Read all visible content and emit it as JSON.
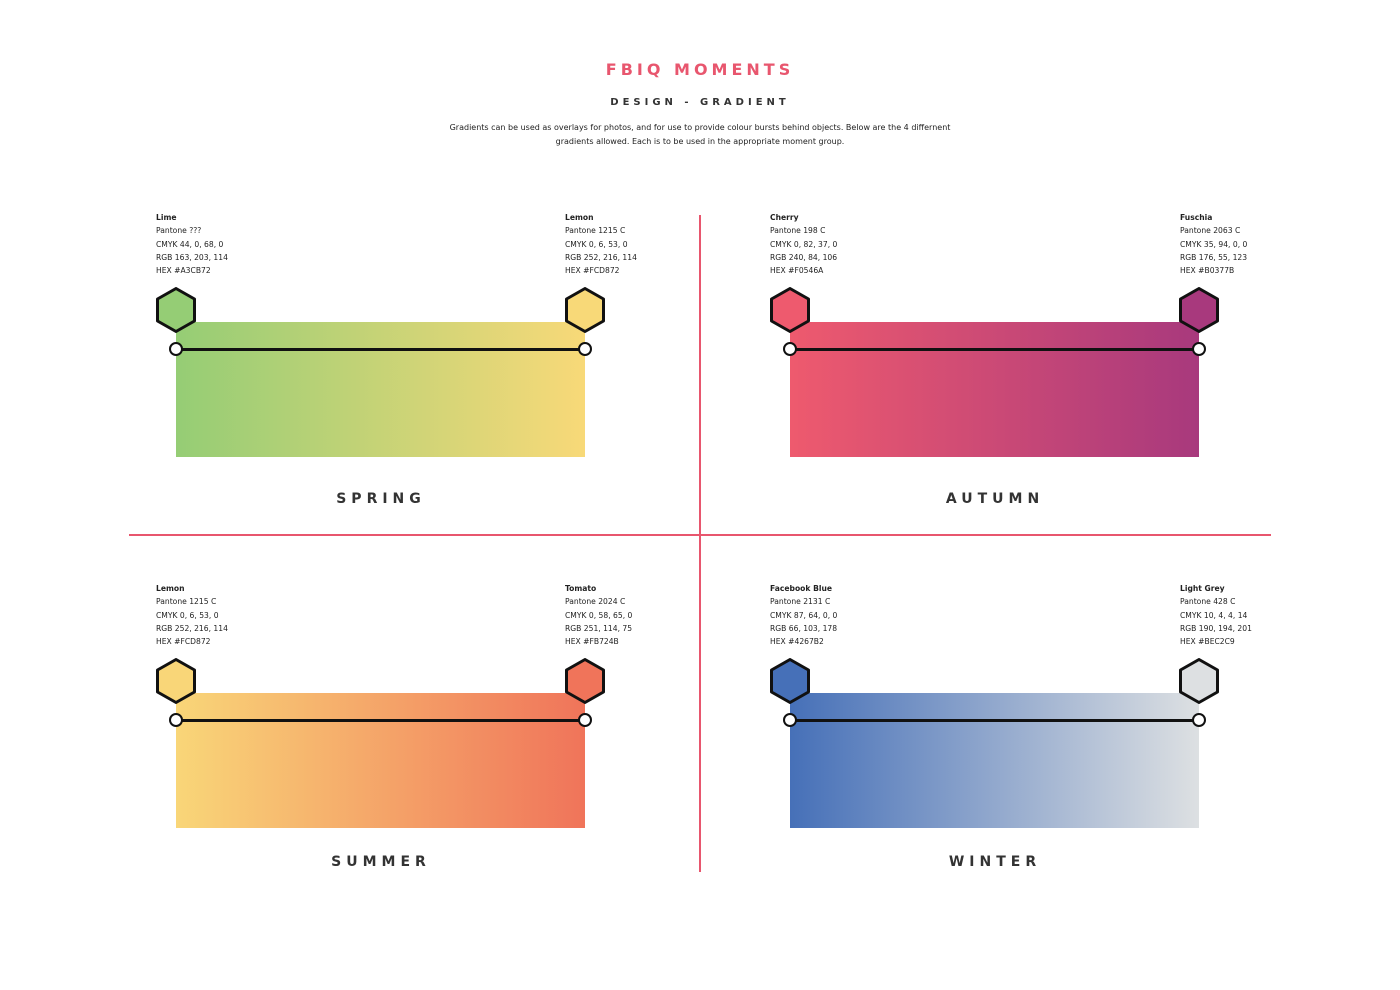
{
  "header": {
    "title": "FBIQ MOMENTS",
    "subtitle": "DESIGN - GRADIENT",
    "description": "Gradients can be used as overlays for photos, and for use to provide colour bursts behind objects. Below are the 4 differnent gradients allowed. Each is to be used in the appropriate moment group."
  },
  "panels": {
    "spring": {
      "season": "SPRING",
      "left": {
        "name": "Lime",
        "pantone": "Pantone ???",
        "cmyk": "CMYK 44, 0, 68, 0",
        "rgb": "RGB 163, 203, 114",
        "hex": "HEX #A3CB72",
        "color": "#95CD75"
      },
      "right": {
        "name": "Lemon",
        "pantone": "Pantone 1215 C",
        "cmyk": "CMYK 0, 6, 53, 0",
        "rgb": "RGB 252, 216, 114",
        "hex": "HEX #FCD872",
        "color": "#F8D978"
      }
    },
    "autumn": {
      "season": "AUTUMN",
      "left": {
        "name": "Cherry",
        "pantone": "Pantone 198 C",
        "cmyk": "CMYK 0, 82, 37, 0",
        "rgb": "RGB 240, 84, 106",
        "hex": "HEX #F0546A",
        "color": "#EE5A6E"
      },
      "right": {
        "name": "Fuschia",
        "pantone": "Pantone 2063 C",
        "cmyk": "CMYK 35, 94, 0, 0",
        "rgb": "RGB 176, 55, 123",
        "hex": "HEX #B0377B",
        "color": "#A8397D"
      }
    },
    "summer": {
      "season": "SUMMER",
      "left": {
        "name": "Lemon",
        "pantone": "Pantone 1215 C",
        "cmyk": "CMYK 0, 6, 53, 0",
        "rgb": "RGB 252, 216, 114",
        "hex": "HEX #FCD872",
        "color": "#F9D678"
      },
      "right": {
        "name": "Tomato",
        "pantone": "Pantone 2024 C",
        "cmyk": "CMYK 0, 58, 65, 0",
        "rgb": "RGB 251, 114, 75",
        "hex": "HEX #FB724B",
        "color": "#F0745A"
      }
    },
    "winter": {
      "season": "WINTER",
      "left": {
        "name": "Facebook Blue",
        "pantone": "Pantone 2131 C",
        "cmyk": "CMYK 87, 64, 0, 0",
        "rgb": "RGB 66, 103, 178",
        "hex": "HEX #4267B2",
        "color": "#4670B8"
      },
      "right": {
        "name": "Light Grey",
        "pantone": "Pantone 428 C",
        "cmyk": "CMYK 10, 4, 4, 14",
        "rgb": "RGB 190, 194, 201",
        "hex": "HEX #BEC2C9",
        "color": "#DDE0E2"
      }
    }
  }
}
